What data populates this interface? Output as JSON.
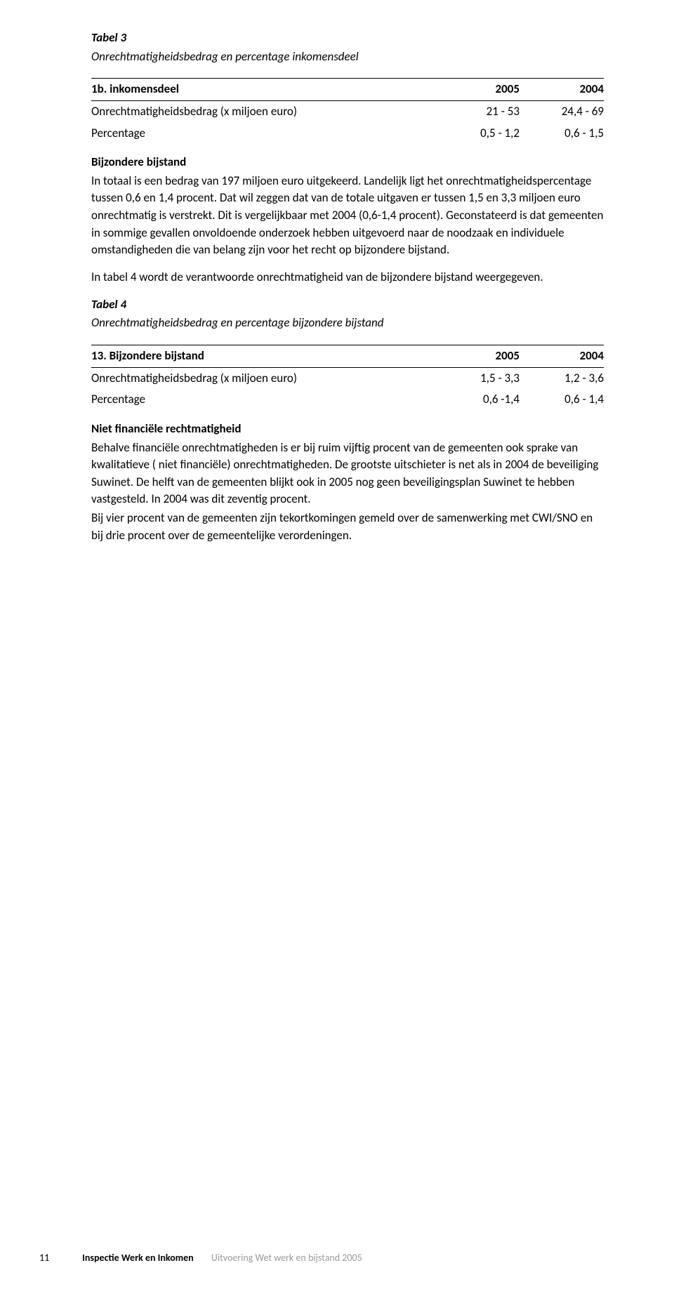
{
  "tabel3": {
    "title": "Tabel 3",
    "subtitle": "Onrechtmatigheidsbedrag en percentage inkomensdeel",
    "header": {
      "label": "1b. inkomensdeel",
      "y2005": "2005",
      "y2004": "2004"
    },
    "rows": [
      {
        "label": "Onrechtmatigheidsbedrag (x miljoen euro)",
        "y2005": "21 - 53",
        "y2004": "24,4 - 69"
      },
      {
        "label": "Percentage",
        "y2005": "0,5 - 1,2",
        "y2004": "0,6 - 1,5"
      }
    ]
  },
  "bijzondere_heading": "Bijzondere bijstand",
  "body1": "In totaal is een bedrag van 197 miljoen euro uitgekeerd. Landelijk ligt het onrechtmatigheidspercentage tussen 0,6 en 1,4 procent. Dat wil zeggen dat van de totale uitgaven er tussen 1,5 en 3,3 miljoen euro onrechtmatig is verstrekt. Dit is vergelijkbaar met 2004 (0,6-1,4 procent). Geconstateerd is dat gemeenten in sommige gevallen onvoldoende onderzoek hebben uitgevoerd naar de noodzaak en individuele omstandigheden die van belang zijn voor het recht op bijzondere bijstand.",
  "body2": "In tabel 4 wordt de verantwoorde onrechtmatigheid van de bijzondere bijstand weergegeven.",
  "tabel4": {
    "title": "Tabel 4",
    "subtitle": "Onrechtmatigheidsbedrag en percentage bijzondere bijstand",
    "header": {
      "label": "13. Bijzondere bijstand",
      "y2005": "2005",
      "y2004": "2004"
    },
    "rows": [
      {
        "label": "Onrechtmatigheidsbedrag  (x miljoen euro)",
        "y2005": "1,5 - 3,3",
        "y2004": "1,2 - 3,6"
      },
      {
        "label": "Percentage",
        "y2005": "0,6 -1,4",
        "y2004": "0,6 - 1,4"
      }
    ]
  },
  "niet_fin_heading": "Niet financiële rechtmatigheid",
  "body3": "Behalve financiële onrechtmatigheden is er bij ruim vijftig procent van de gemeenten ook sprake van kwalitatieve ( niet financiële) onrechtmatigheden. De grootste uitschieter is net als in 2004 de beveiliging Suwinet. De helft van de gemeenten blijkt ook in 2005 nog geen beveiligingsplan Suwinet te hebben vastgesteld. In 2004 was dit zeventig procent.",
  "body4": "Bij vier procent van de gemeenten zijn tekortkomingen gemeld over de samenwerking met CWI/SNO en bij drie procent over de gemeentelijke verordeningen.",
  "footer": {
    "page": "11",
    "bold": "Inspectie Werk en Inkomen",
    "light": "Uitvoering Wet werk en bijstand 2005"
  }
}
